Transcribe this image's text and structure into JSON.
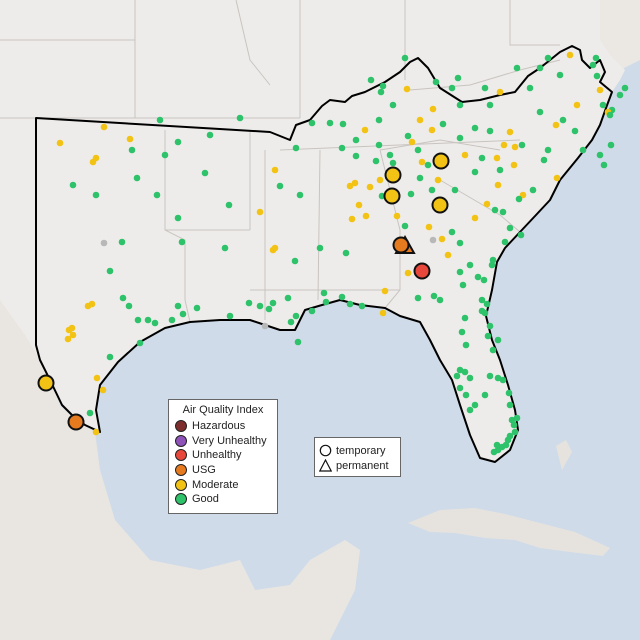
{
  "map": {
    "colors": {
      "water": "#cfdbe8",
      "land": "#eeecea",
      "foreign_land": "#e9e6e2",
      "boundary": "#c8c4c0",
      "region_outline": "#000000"
    }
  },
  "legend": {
    "title": "Air Quality Index",
    "categories": [
      {
        "label": "Hazardous",
        "color": "#7e2d2d"
      },
      {
        "label": "Very Unhealthy",
        "color": "#8e52b8"
      },
      {
        "label": "Unhealthy",
        "color": "#e8473b"
      },
      {
        "label": "USG",
        "color": "#e57a1f"
      },
      {
        "label": "Moderate",
        "color": "#f2c314"
      },
      {
        "label": "Good",
        "color": "#2ec26a"
      }
    ],
    "no_data_color": "#b8b8b8"
  },
  "shape_legend": {
    "items": [
      {
        "label": "temporary",
        "shape": "circle-icon"
      },
      {
        "label": "permanent",
        "shape": "triangle-icon"
      }
    ]
  }
}
